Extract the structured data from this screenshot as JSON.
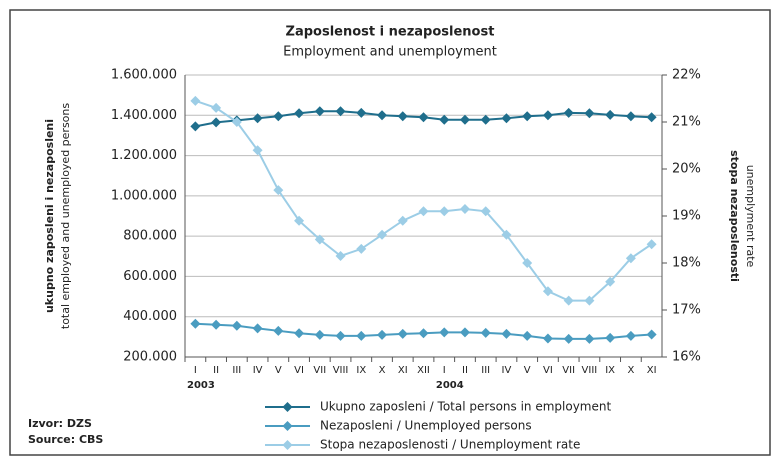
{
  "chart_data": {
    "type": "line",
    "title": "Zaposlenost i nezaposlenost",
    "subtitle": "Employment and unemployment",
    "y_label": "ukupno zaposleni i nezaposleni",
    "y_sublabel": "total employed and unemployed persons",
    "y2_label": "stopa nezaposlenosti",
    "y2_sublabel": "unemplyment rate",
    "categories": [
      "I",
      "II",
      "III",
      "IV",
      "V",
      "VI",
      "VII",
      "VIII",
      "IX",
      "X",
      "XI",
      "XII",
      "I",
      "II",
      "III",
      "IV",
      "V",
      "VI",
      "VII",
      "VIII",
      "IX",
      "X",
      "XI"
    ],
    "year_labels": [
      "2003",
      "2004"
    ],
    "ylim": [
      200000,
      1600000
    ],
    "yticks": [
      {
        "value": 200000,
        "label": "200.000"
      },
      {
        "value": 400000,
        "label": "400.000"
      },
      {
        "value": 600000,
        "label": "600.000"
      },
      {
        "value": 800000,
        "label": "800.000"
      },
      {
        "value": 1000000,
        "label": "1.000.000"
      },
      {
        "value": 1200000,
        "label": "1.200.000"
      },
      {
        "value": 1400000,
        "label": "1.400.000"
      },
      {
        "value": 1600000,
        "label": "1.600.000"
      }
    ],
    "y2lim": [
      16,
      22
    ],
    "y2ticks": [
      {
        "value": 16,
        "label": "16%"
      },
      {
        "value": 17,
        "label": "17%"
      },
      {
        "value": 18,
        "label": "18%"
      },
      {
        "value": 19,
        "label": "19%"
      },
      {
        "value": 20,
        "label": "20%"
      },
      {
        "value": 21,
        "label": "21%"
      },
      {
        "value": 22,
        "label": "22%"
      }
    ],
    "grid": true,
    "series": [
      {
        "name": "Ukupno zaposleni / Total persons in employment",
        "color": "#1f6e8c",
        "values": [
          1345000,
          1365000,
          1375000,
          1385000,
          1395000,
          1410000,
          1420000,
          1420000,
          1412000,
          1400000,
          1395000,
          1390000,
          1378000,
          1378000,
          1378000,
          1385000,
          1395000,
          1400000,
          1412000,
          1410000,
          1402000,
          1395000,
          1390000
        ]
      },
      {
        "name": "Nezaposleni / Unemployed persons",
        "color": "#4a9cc0",
        "values": [
          365000,
          360000,
          355000,
          342000,
          330000,
          318000,
          310000,
          305000,
          305000,
          310000,
          315000,
          318000,
          322000,
          322000,
          320000,
          315000,
          305000,
          292000,
          290000,
          290000,
          295000,
          305000,
          312000
        ]
      },
      {
        "name": "Stopa nezaposlenosti / Unemployment rate",
        "color": "#9ccde6",
        "axis": "y2",
        "values": [
          21.45,
          21.3,
          21.0,
          20.4,
          19.55,
          18.9,
          18.5,
          18.15,
          18.3,
          18.6,
          18.9,
          19.1,
          19.1,
          19.15,
          19.1,
          18.6,
          18.0,
          17.4,
          17.2,
          17.2,
          17.6,
          18.1,
          18.4
        ]
      }
    ],
    "source": [
      "Izvor: DZS",
      "Source: CBS"
    ]
  }
}
